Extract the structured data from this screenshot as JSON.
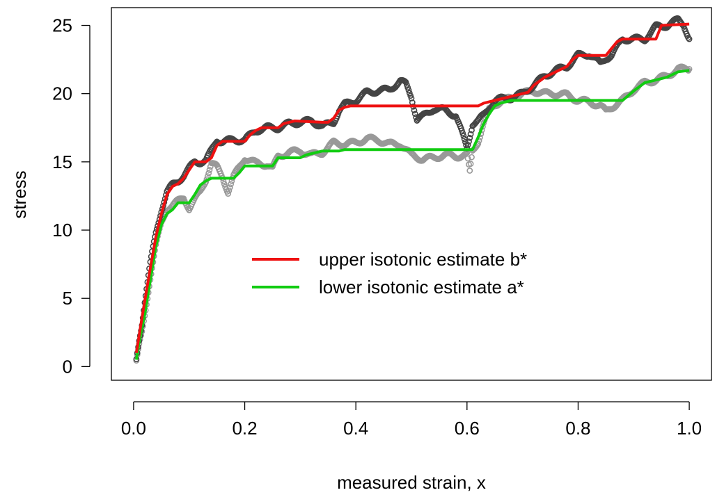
{
  "chart_data": {
    "type": "scatter",
    "title": "",
    "xlabel": "measured strain, x",
    "ylabel": "stress",
    "xlim": [
      -0.04,
      1.04
    ],
    "ylim": [
      -1.0,
      26.3
    ],
    "x_ticks": [
      {
        "value": 0.0,
        "label": "0.0"
      },
      {
        "value": 0.2,
        "label": "0.2"
      },
      {
        "value": 0.4,
        "label": "0.4"
      },
      {
        "value": 0.6,
        "label": "0.6"
      },
      {
        "value": 0.8,
        "label": "0.8"
      },
      {
        "value": 1.0,
        "label": "1.0"
      }
    ],
    "y_ticks": [
      {
        "value": 0,
        "label": "0"
      },
      {
        "value": 5,
        "label": "5"
      },
      {
        "value": 10,
        "label": "10"
      },
      {
        "value": 15,
        "label": "15"
      },
      {
        "value": 20,
        "label": "20"
      },
      {
        "value": 25,
        "label": "25"
      }
    ],
    "grid": false,
    "legend": {
      "position": "center-right",
      "entries": [
        {
          "label": "upper isotonic estimate b*",
          "color": "#ee1111"
        },
        {
          "label": "lower isotonic estimate a*",
          "color": "#11cc11"
        }
      ]
    },
    "series": [
      {
        "kind": "points",
        "color": "#444444",
        "x": [
          0.005,
          0.01,
          0.015,
          0.02,
          0.03,
          0.04,
          0.05,
          0.06,
          0.07,
          0.08,
          0.09,
          0.1,
          0.11,
          0.12,
          0.13,
          0.14,
          0.15,
          0.16,
          0.18,
          0.2,
          0.22,
          0.24,
          0.26,
          0.28,
          0.3,
          0.32,
          0.34,
          0.36,
          0.37,
          0.38,
          0.4,
          0.42,
          0.44,
          0.46,
          0.48,
          0.49,
          0.5,
          0.51,
          0.52,
          0.54,
          0.56,
          0.57,
          0.58,
          0.6,
          0.61,
          0.62,
          0.63,
          0.64,
          0.65,
          0.66,
          0.68,
          0.7,
          0.72,
          0.74,
          0.76,
          0.78,
          0.8,
          0.82,
          0.84,
          0.85,
          0.86,
          0.88,
          0.9,
          0.92,
          0.94,
          0.96,
          0.97,
          0.98,
          0.99,
          1.0
        ],
        "y": [
          0.5,
          2.0,
          3.2,
          4.8,
          7.5,
          9.8,
          11.5,
          12.8,
          13.3,
          13.6,
          14.0,
          14.5,
          15.0,
          15.0,
          15.1,
          15.8,
          16.6,
          16.5,
          16.6,
          16.6,
          17.3,
          17.5,
          17.5,
          17.8,
          17.9,
          18.0,
          17.6,
          17.9,
          18.8,
          19.2,
          19.5,
          20.1,
          20.2,
          20.3,
          20.9,
          20.7,
          19.8,
          18.1,
          18.3,
          18.9,
          18.8,
          18.6,
          18.4,
          16.0,
          17.8,
          18.0,
          18.4,
          19.0,
          19.5,
          19.6,
          19.7,
          20.0,
          20.6,
          21.3,
          21.7,
          22.0,
          22.8,
          22.9,
          22.2,
          22.6,
          22.8,
          24.0,
          24.0,
          24.0,
          24.9,
          25.0,
          25.2,
          25.4,
          25.1,
          24.0
        ]
      },
      {
        "kind": "points",
        "color": "#999999",
        "x": [
          0.005,
          0.01,
          0.015,
          0.02,
          0.03,
          0.04,
          0.05,
          0.06,
          0.07,
          0.08,
          0.09,
          0.1,
          0.11,
          0.12,
          0.13,
          0.14,
          0.15,
          0.16,
          0.17,
          0.18,
          0.2,
          0.22,
          0.24,
          0.25,
          0.26,
          0.28,
          0.3,
          0.32,
          0.34,
          0.36,
          0.38,
          0.4,
          0.42,
          0.44,
          0.46,
          0.48,
          0.5,
          0.52,
          0.54,
          0.56,
          0.58,
          0.6,
          0.605,
          0.61,
          0.62,
          0.63,
          0.64,
          0.65,
          0.66,
          0.68,
          0.7,
          0.72,
          0.74,
          0.76,
          0.78,
          0.8,
          0.82,
          0.84,
          0.85,
          0.86,
          0.88,
          0.9,
          0.92,
          0.94,
          0.96,
          0.98,
          1.0
        ],
        "y": [
          0.3,
          1.5,
          2.5,
          3.8,
          6.5,
          8.8,
          10.5,
          11.6,
          11.8,
          12.1,
          12.4,
          11.6,
          12.2,
          12.8,
          13.7,
          14.9,
          14.6,
          13.9,
          12.8,
          13.9,
          15.3,
          14.9,
          14.8,
          14.5,
          15.4,
          15.7,
          15.8,
          15.5,
          15.7,
          16.4,
          16.3,
          16.4,
          16.7,
          16.6,
          16.3,
          16.3,
          15.5,
          15.2,
          15.3,
          15.5,
          15.4,
          15.5,
          14.2,
          15.8,
          16.5,
          17.8,
          18.8,
          19.2,
          19.4,
          19.7,
          20.0,
          20.2,
          20.0,
          20.0,
          19.9,
          19.5,
          19.4,
          19.1,
          18.7,
          19.0,
          19.5,
          20.3,
          20.8,
          21.0,
          21.3,
          21.8,
          21.8
        ]
      },
      {
        "kind": "step-line",
        "name": "upper isotonic estimate b*",
        "color": "#ee1111",
        "x": [
          0.005,
          0.01,
          0.02,
          0.03,
          0.04,
          0.05,
          0.06,
          0.07,
          0.08,
          0.09,
          0.1,
          0.11,
          0.12,
          0.13,
          0.14,
          0.15,
          0.16,
          0.2,
          0.21,
          0.22,
          0.23,
          0.26,
          0.27,
          0.28,
          0.29,
          0.34,
          0.35,
          0.36,
          0.37,
          0.38,
          0.39,
          0.62,
          0.63,
          0.64,
          0.65,
          0.66,
          0.68,
          0.7,
          0.71,
          0.72,
          0.74,
          0.76,
          0.78,
          0.79,
          0.8,
          0.85,
          0.86,
          0.87,
          0.88,
          0.94,
          0.95,
          1.0
        ],
        "y": [
          1.0,
          2.3,
          4.8,
          7.2,
          9.5,
          11.2,
          12.6,
          13.2,
          13.4,
          13.8,
          14.4,
          15.0,
          15.0,
          15.0,
          15.3,
          16.2,
          16.5,
          16.5,
          17.0,
          17.3,
          17.5,
          17.5,
          17.8,
          17.9,
          18.0,
          17.9,
          17.9,
          18.2,
          18.8,
          19.0,
          19.1,
          19.1,
          19.3,
          19.4,
          19.5,
          19.6,
          19.8,
          20.0,
          20.1,
          20.6,
          21.2,
          21.6,
          22.0,
          22.5,
          22.8,
          22.8,
          23.3,
          23.8,
          24.0,
          24.0,
          25.0,
          25.1
        ]
      },
      {
        "kind": "step-line",
        "name": "lower isotonic estimate a*",
        "color": "#11cc11",
        "x": [
          0.005,
          0.01,
          0.02,
          0.03,
          0.04,
          0.05,
          0.06,
          0.07,
          0.08,
          0.09,
          0.1,
          0.11,
          0.12,
          0.13,
          0.14,
          0.18,
          0.19,
          0.2,
          0.25,
          0.26,
          0.3,
          0.31,
          0.34,
          0.35,
          0.37,
          0.38,
          0.61,
          0.62,
          0.63,
          0.64,
          0.65,
          0.66,
          0.68,
          0.7,
          0.88,
          0.9,
          0.92,
          0.94,
          0.96,
          0.98,
          1.0
        ],
        "y": [
          0.5,
          1.8,
          3.8,
          6.3,
          8.8,
          10.4,
          11.2,
          11.5,
          12.0,
          12.0,
          12.0,
          12.6,
          13.3,
          13.6,
          13.8,
          13.8,
          14.2,
          14.7,
          14.7,
          15.3,
          15.3,
          15.5,
          15.8,
          15.8,
          15.8,
          15.9,
          15.9,
          16.8,
          17.8,
          18.5,
          19.1,
          19.3,
          19.5,
          19.5,
          19.5,
          20.2,
          20.8,
          21.0,
          21.2,
          21.6,
          21.7
        ]
      }
    ]
  }
}
